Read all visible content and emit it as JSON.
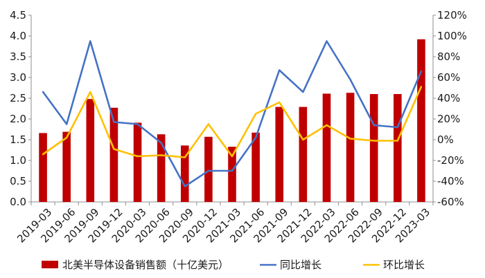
{
  "chart_data": {
    "type": "bar",
    "categories": [
      "2019-03",
      "2019-06",
      "2019-09",
      "2019-12",
      "2020-03",
      "2020-06",
      "2020-09",
      "2020-12",
      "2021-03",
      "2021-06",
      "2021-09",
      "2021-12",
      "2022-03",
      "2022-06",
      "2022-09",
      "2022-12",
      "2023-03"
    ],
    "series": [
      {
        "name": "北美半导体设备销售额（十亿美元）",
        "type": "bar",
        "axis": "left",
        "color": "#c00000",
        "values": [
          1.66,
          1.69,
          2.48,
          2.27,
          1.91,
          1.63,
          1.36,
          1.57,
          1.33,
          1.67,
          2.29,
          2.29,
          2.61,
          2.63,
          2.6,
          2.6,
          3.92
        ]
      },
      {
        "name": "同比增长",
        "type": "line",
        "axis": "right",
        "color": "#4472c4",
        "values": [
          46,
          15,
          95,
          17,
          15,
          -3,
          -45,
          -30,
          -30,
          2,
          67,
          46,
          95,
          58,
          14,
          12,
          66
        ]
      },
      {
        "name": "环比增长",
        "type": "line",
        "axis": "right",
        "color": "#ffc000",
        "values": [
          -14,
          2,
          46,
          -9,
          -16,
          -15,
          -17,
          15,
          -16,
          25,
          36,
          0,
          14,
          1,
          -1,
          -1,
          51
        ]
      }
    ],
    "y_left": {
      "min": 0,
      "max": 4.5,
      "ticks": [
        "0.0",
        "0.5",
        "1.0",
        "1.5",
        "2.0",
        "2.5",
        "3.0",
        "3.5",
        "4.0",
        "4.5"
      ]
    },
    "y_right": {
      "min": -60,
      "max": 120,
      "ticks": [
        "-60%",
        "-40%",
        "-20%",
        "0%",
        "20%",
        "40%",
        "60%",
        "80%",
        "100%",
        "120%"
      ]
    },
    "legend_position": "bottom",
    "grid": false
  }
}
